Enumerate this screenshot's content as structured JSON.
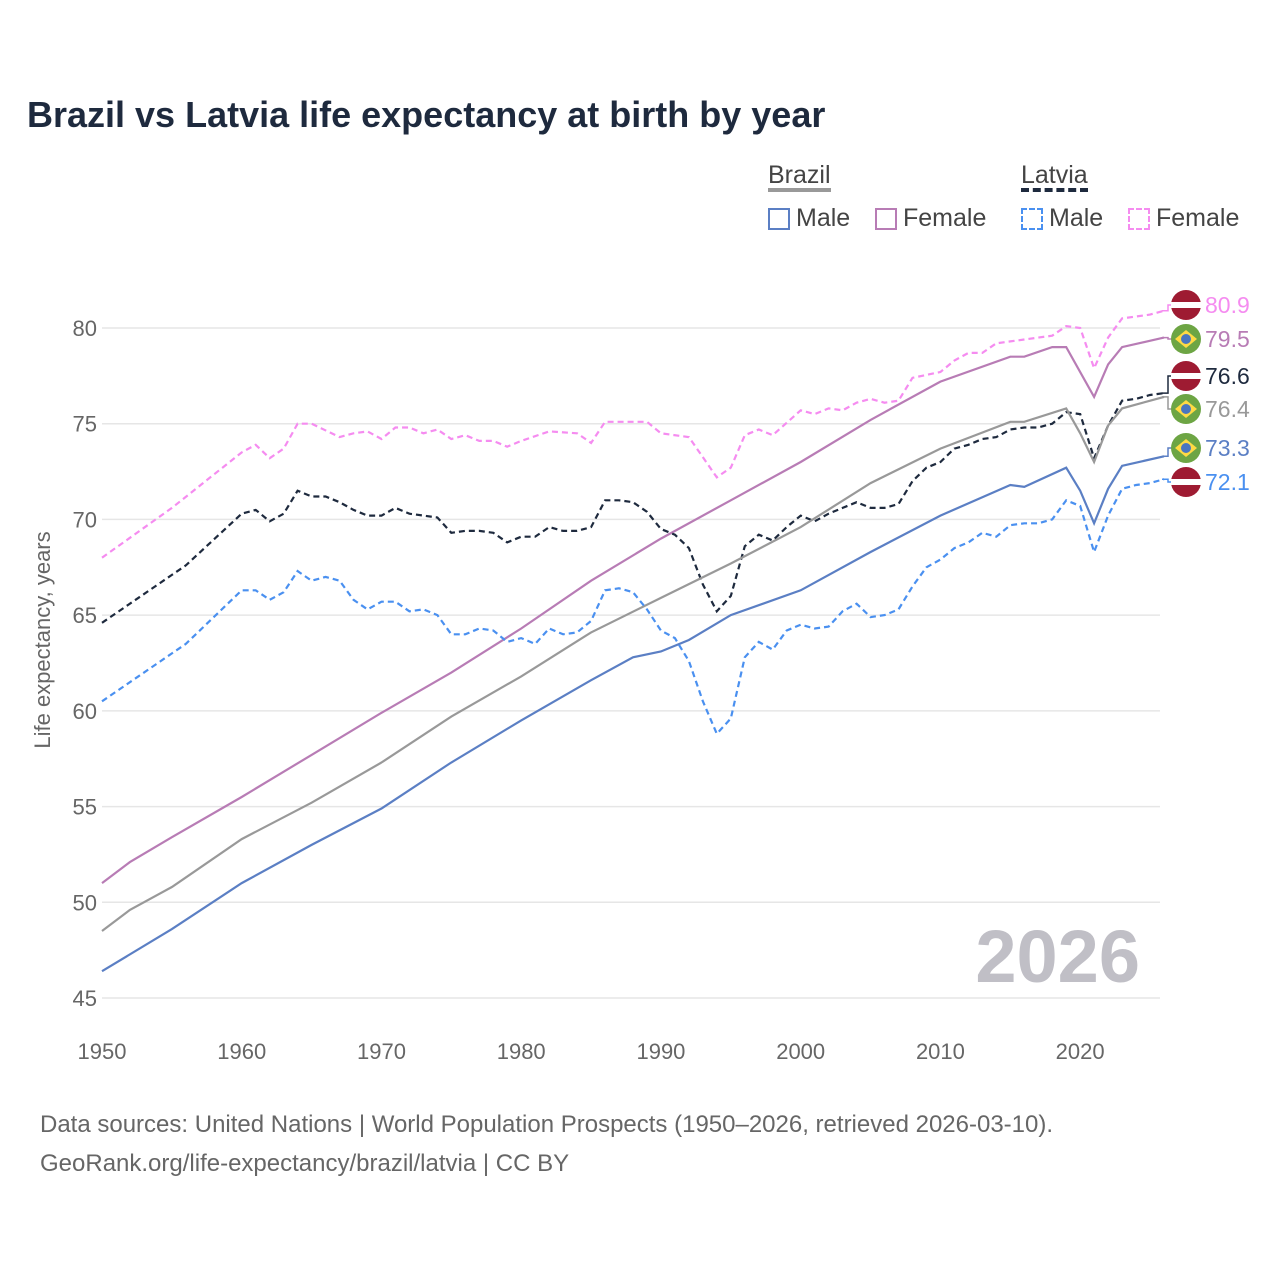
{
  "title": "Brazil vs Latvia life expectancy at birth by year",
  "legend": {
    "groups": [
      {
        "name": "Brazil",
        "items": [
          "Male",
          "Female"
        ]
      },
      {
        "name": "Latvia",
        "items": [
          "Male",
          "Female"
        ]
      }
    ]
  },
  "year_watermark": "2026",
  "footer": {
    "line1": "Data sources: United Nations | World Population Prospects (1950–2026, retrieved 2026-03-10).",
    "line2": "GeoRank.org/life-expectancy/brazil/latvia | CC BY"
  },
  "colors": {
    "brazil_total": "#999999",
    "brazil_male": "#5b7fc4",
    "brazil_female": "#b87cb5",
    "latvia_total": "#1e2a3e",
    "latvia_male": "#4a90f0",
    "latvia_female": "#f58cf0"
  },
  "chart_data": {
    "type": "line",
    "title": "Brazil vs Latvia life expectancy at birth by year",
    "xlabel": "",
    "ylabel": "Life expectancy, years",
    "xlim": [
      1950,
      2026
    ],
    "ylim": [
      44.5,
      82.5
    ],
    "xticks": [
      1950,
      1960,
      1970,
      1980,
      1990,
      2000,
      2010,
      2020
    ],
    "yticks": [
      45,
      50,
      55,
      60,
      65,
      70,
      75,
      80
    ],
    "grid": true,
    "legend_position": "top-right",
    "series": [
      {
        "name": "Latvia Female",
        "country": "Latvia",
        "flag": "latvia",
        "color": "#f58cf0",
        "dash": true,
        "end_label": "80.9",
        "x": [
          1950,
          1955,
          1960,
          1961,
          1962,
          1963,
          1964,
          1965,
          1967,
          1968,
          1969,
          1970,
          1971,
          1972,
          1973,
          1974,
          1975,
          1976,
          1977,
          1978,
          1979,
          1980,
          1982,
          1984,
          1985,
          1986,
          1989,
          1990,
          1992,
          1994,
          1995,
          1996,
          1997,
          1998,
          2000,
          2001,
          2002,
          2003,
          2004,
          2005,
          2006,
          2007,
          2008,
          2010,
          2011,
          2012,
          2013,
          2014,
          2015,
          2016,
          2017,
          2018,
          2019,
          2020,
          2021,
          2022,
          2023,
          2024,
          2025,
          2026
        ],
        "y": [
          68.0,
          70.6,
          73.5,
          73.9,
          73.2,
          73.7,
          75.0,
          75.0,
          74.3,
          74.5,
          74.6,
          74.2,
          74.8,
          74.8,
          74.5,
          74.7,
          74.2,
          74.4,
          74.1,
          74.1,
          73.8,
          74.1,
          74.6,
          74.5,
          74.0,
          75.1,
          75.1,
          74.5,
          74.3,
          72.2,
          72.7,
          74.4,
          74.7,
          74.4,
          75.7,
          75.5,
          75.8,
          75.7,
          76.1,
          76.3,
          76.1,
          76.2,
          77.4,
          77.7,
          78.3,
          78.7,
          78.7,
          79.2,
          79.3,
          79.4,
          79.5,
          79.6,
          80.1,
          80.0,
          77.9,
          79.5,
          80.5,
          80.6,
          80.7,
          80.9
        ]
      },
      {
        "name": "Brazil Female",
        "country": "Brazil",
        "flag": "brazil",
        "color": "#b87cb5",
        "dash": false,
        "end_label": "79.5",
        "x": [
          1950,
          1952,
          1955,
          1960,
          1965,
          1970,
          1975,
          1980,
          1985,
          1990,
          1995,
          2000,
          2005,
          2010,
          2015,
          2016,
          2018,
          2019,
          2021,
          2022,
          2023,
          2026
        ],
        "y": [
          51.0,
          52.1,
          53.4,
          55.5,
          57.7,
          59.9,
          62.0,
          64.3,
          66.8,
          69.0,
          71.0,
          73.0,
          75.2,
          77.2,
          78.5,
          78.5,
          79.0,
          79.0,
          76.4,
          78.1,
          79.0,
          79.5
        ]
      },
      {
        "name": "Latvia",
        "country": "Latvia",
        "flag": "latvia",
        "color": "#1e2a3e",
        "dash": true,
        "end_label": "76.6",
        "x": [
          1950,
          1955,
          1956,
          1960,
          1961,
          1962,
          1963,
          1964,
          1965,
          1966,
          1967,
          1968,
          1969,
          1970,
          1971,
          1972,
          1973,
          1974,
          1975,
          1976,
          1977,
          1978,
          1979,
          1980,
          1981,
          1982,
          1983,
          1984,
          1985,
          1986,
          1987,
          1988,
          1989,
          1990,
          1991,
          1992,
          1993,
          1994,
          1995,
          1996,
          1997,
          1998,
          1999,
          2000,
          2001,
          2002,
          2003,
          2004,
          2005,
          2006,
          2007,
          2008,
          2009,
          2010,
          2011,
          2012,
          2013,
          2014,
          2015,
          2016,
          2017,
          2018,
          2019,
          2020,
          2021,
          2022,
          2023,
          2024,
          2025,
          2026
        ],
        "y": [
          64.6,
          67.1,
          67.6,
          70.3,
          70.5,
          69.9,
          70.3,
          71.5,
          71.2,
          71.2,
          70.9,
          70.5,
          70.2,
          70.2,
          70.6,
          70.3,
          70.2,
          70.1,
          69.3,
          69.4,
          69.4,
          69.3,
          68.8,
          69.1,
          69.1,
          69.6,
          69.4,
          69.4,
          69.6,
          71.0,
          71.0,
          70.9,
          70.4,
          69.5,
          69.2,
          68.5,
          66.6,
          65.2,
          66.0,
          68.6,
          69.2,
          68.9,
          69.6,
          70.2,
          69.9,
          70.3,
          70.6,
          70.9,
          70.6,
          70.6,
          70.8,
          72.0,
          72.7,
          73.0,
          73.7,
          73.9,
          74.2,
          74.3,
          74.7,
          74.8,
          74.8,
          75.0,
          75.6,
          75.5,
          73.2,
          74.9,
          76.2,
          76.3,
          76.5,
          76.6
        ]
      },
      {
        "name": "Brazil",
        "country": "Brazil",
        "flag": "brazil",
        "color": "#999999",
        "dash": false,
        "end_label": "76.4",
        "x": [
          1950,
          1952,
          1955,
          1960,
          1965,
          1970,
          1975,
          1980,
          1985,
          1990,
          1995,
          2000,
          2005,
          2010,
          2015,
          2016,
          2019,
          2020,
          2021,
          2022,
          2023,
          2026
        ],
        "y": [
          48.5,
          49.6,
          50.8,
          53.3,
          55.2,
          57.3,
          59.7,
          61.8,
          64.1,
          65.9,
          67.7,
          69.6,
          71.9,
          73.7,
          75.1,
          75.1,
          75.8,
          74.5,
          73.0,
          74.9,
          75.8,
          76.4
        ]
      },
      {
        "name": "Brazil Male",
        "country": "Brazil",
        "flag": "brazil",
        "color": "#5b7fc4",
        "dash": false,
        "end_label": "73.3",
        "x": [
          1950,
          1955,
          1960,
          1965,
          1970,
          1975,
          1980,
          1985,
          1988,
          1990,
          1992,
          1995,
          2000,
          2005,
          2010,
          2015,
          2016,
          2019,
          2020,
          2021,
          2022,
          2023,
          2026
        ],
        "y": [
          46.4,
          48.6,
          51.0,
          53.0,
          54.9,
          57.3,
          59.5,
          61.6,
          62.8,
          63.1,
          63.7,
          65.0,
          66.3,
          68.3,
          70.2,
          71.8,
          71.7,
          72.7,
          71.5,
          69.8,
          71.6,
          72.8,
          73.3
        ]
      },
      {
        "name": "Latvia Male",
        "country": "Latvia",
        "flag": "latvia",
        "color": "#4a90f0",
        "dash": true,
        "end_label": "72.1",
        "x": [
          1950,
          1955,
          1956,
          1960,
          1961,
          1962,
          1963,
          1964,
          1965,
          1966,
          1967,
          1968,
          1969,
          1970,
          1971,
          1972,
          1973,
          1974,
          1975,
          1976,
          1977,
          1978,
          1979,
          1980,
          1981,
          1982,
          1983,
          1984,
          1985,
          1986,
          1987,
          1988,
          1989,
          1990,
          1991,
          1992,
          1993,
          1994,
          1995,
          1996,
          1997,
          1998,
          1999,
          2000,
          2001,
          2002,
          2003,
          2004,
          2005,
          2006,
          2007,
          2008,
          2009,
          2010,
          2011,
          2012,
          2013,
          2014,
          2015,
          2016,
          2017,
          2018,
          2019,
          2020,
          2021,
          2022,
          2023,
          2024,
          2025,
          2026
        ],
        "y": [
          60.5,
          63.0,
          63.5,
          66.3,
          66.3,
          65.8,
          66.2,
          67.3,
          66.8,
          67.0,
          66.8,
          65.8,
          65.3,
          65.7,
          65.7,
          65.2,
          65.3,
          65.0,
          64.0,
          64.0,
          64.3,
          64.2,
          63.6,
          63.8,
          63.5,
          64.3,
          64.0,
          64.1,
          64.7,
          66.3,
          66.4,
          66.2,
          65.3,
          64.2,
          63.8,
          62.6,
          60.5,
          58.8,
          59.6,
          62.8,
          63.6,
          63.2,
          64.2,
          64.5,
          64.3,
          64.4,
          65.2,
          65.6,
          64.9,
          65.0,
          65.3,
          66.5,
          67.5,
          67.9,
          68.5,
          68.8,
          69.3,
          69.1,
          69.7,
          69.8,
          69.8,
          70.0,
          71.0,
          70.7,
          68.3,
          70.2,
          71.6,
          71.8,
          71.9,
          72.1
        ]
      }
    ]
  }
}
